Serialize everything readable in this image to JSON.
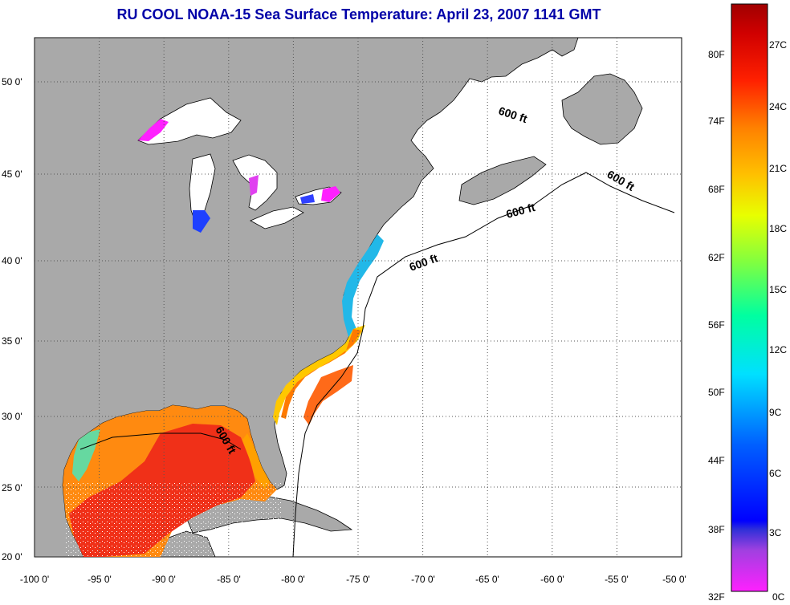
{
  "title": "RU COOL  NOAA-15  Sea Surface Temperature:  April 23, 2007 1141 GMT",
  "map": {
    "lon_range": [
      -100,
      -50
    ],
    "lat_range": [
      20,
      52.5
    ],
    "lon_ticks": [
      "-100 0'",
      "-95 0'",
      "-90 0'",
      "-85 0'",
      "-80 0'",
      "-75 0'",
      "-70 0'",
      "-65 0'",
      "-60 0'",
      "-55 0'",
      "-50 0'"
    ],
    "lat_ticks": [
      "20 0'",
      "25 0'",
      "30 0'",
      "35 0'",
      "40 0'",
      "45 0'",
      "50 0'"
    ],
    "grid": "dotted",
    "colors": {
      "land": "#a9a9a9",
      "no_data": "#ffffff",
      "coast": "#000000"
    },
    "isobath_labels": [
      "600 ft",
      "600 ft",
      "600 ft",
      "600 ft",
      "600 ft"
    ]
  },
  "colorbar": {
    "fahrenheit": [
      "32F",
      "38F",
      "44F",
      "50F",
      "56F",
      "62F",
      "68F",
      "74F",
      "80F"
    ],
    "celsius": [
      "0C",
      "3C",
      "6C",
      "9C",
      "12C",
      "15C",
      "18C",
      "21C",
      "24C",
      "27C"
    ]
  }
}
